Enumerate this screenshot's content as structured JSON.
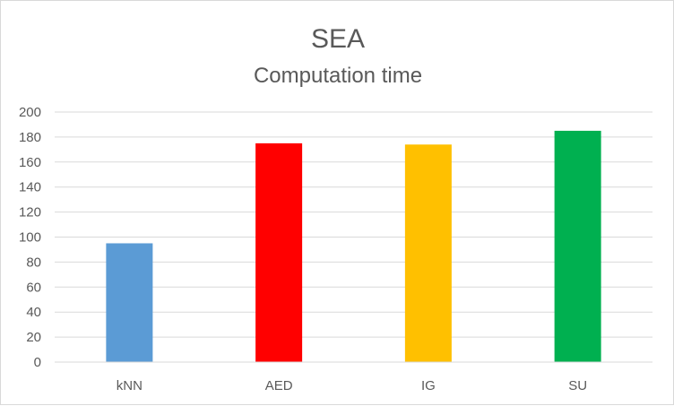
{
  "chart_data": {
    "type": "bar",
    "title": "SEA",
    "subtitle": "Computation time",
    "xlabel": "",
    "ylabel": "",
    "categories": [
      "kNN",
      "AED",
      "IG",
      "SU"
    ],
    "values": [
      95,
      175,
      174,
      185
    ],
    "colors": [
      "#5B9BD5",
      "#FF0000",
      "#FFC000",
      "#00B050"
    ],
    "ylim": [
      0,
      200
    ],
    "yticks": [
      0,
      20,
      40,
      60,
      80,
      100,
      120,
      140,
      160,
      180,
      200
    ],
    "grid": true,
    "legend": "none"
  }
}
